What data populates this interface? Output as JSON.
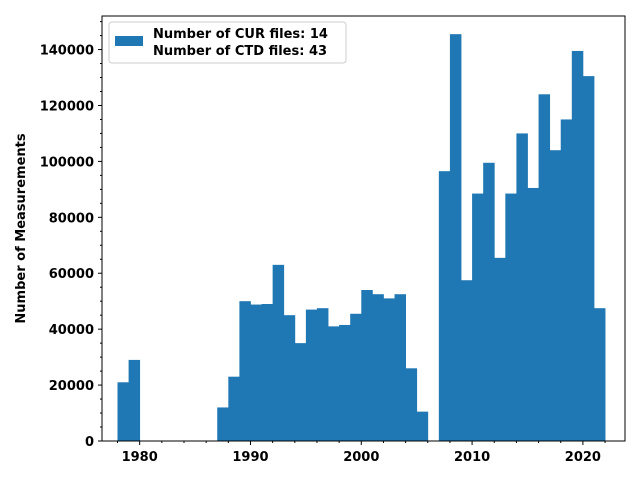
{
  "chart_data": {
    "type": "bar",
    "title": "",
    "xlabel": "",
    "ylabel": "Number of Measurements",
    "xlim": [
      1976.6,
      2023.8
    ],
    "ylim": [
      0,
      152000
    ],
    "xticks": [
      1980,
      1990,
      2000,
      2010,
      2020
    ],
    "yticks": [
      0,
      20000,
      40000,
      60000,
      80000,
      100000,
      120000,
      140000
    ],
    "bar_width": 1,
    "color": "#1f77b4",
    "grid": false,
    "legend": {
      "position": "top-left",
      "entries": [
        "Number of CUR files: 14",
        "Number of CTD files: 43"
      ]
    },
    "bars": [
      {
        "x": 1978.5,
        "value": 21000
      },
      {
        "x": 1979.5,
        "value": 29000
      },
      {
        "x": 1987.5,
        "value": 12000
      },
      {
        "x": 1988.5,
        "value": 23000
      },
      {
        "x": 1989.5,
        "value": 50000
      },
      {
        "x": 1990.5,
        "value": 48800
      },
      {
        "x": 1991.5,
        "value": 49000
      },
      {
        "x": 1992.5,
        "value": 63000
      },
      {
        "x": 1993.5,
        "value": 45000
      },
      {
        "x": 1994.5,
        "value": 35000
      },
      {
        "x": 1995.5,
        "value": 47000
      },
      {
        "x": 1996.5,
        "value": 47500
      },
      {
        "x": 1997.5,
        "value": 41000
      },
      {
        "x": 1998.5,
        "value": 41500
      },
      {
        "x": 1999.5,
        "value": 45500
      },
      {
        "x": 2000.5,
        "value": 54000
      },
      {
        "x": 2001.5,
        "value": 52500
      },
      {
        "x": 2002.5,
        "value": 51000
      },
      {
        "x": 2003.5,
        "value": 52500
      },
      {
        "x": 2004.5,
        "value": 26000
      },
      {
        "x": 2005.5,
        "value": 10500
      },
      {
        "x": 2007.5,
        "value": 96500
      },
      {
        "x": 2008.5,
        "value": 145500
      },
      {
        "x": 2009.5,
        "value": 57500
      },
      {
        "x": 2010.5,
        "value": 88500
      },
      {
        "x": 2011.5,
        "value": 99500
      },
      {
        "x": 2012.5,
        "value": 65500
      },
      {
        "x": 2013.5,
        "value": 88500
      },
      {
        "x": 2014.5,
        "value": 110000
      },
      {
        "x": 2015.5,
        "value": 90500
      },
      {
        "x": 2016.5,
        "value": 124000
      },
      {
        "x": 2017.5,
        "value": 104000
      },
      {
        "x": 2018.5,
        "value": 115000
      },
      {
        "x": 2019.5,
        "value": 139500
      },
      {
        "x": 2020.5,
        "value": 130500
      },
      {
        "x": 2021.5,
        "value": 47500
      }
    ]
  }
}
